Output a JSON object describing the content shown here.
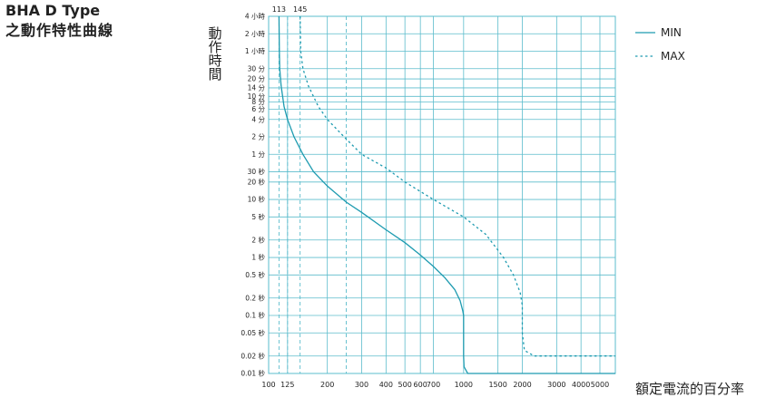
{
  "chart_data": {
    "type": "line",
    "title": "BHA D Type",
    "subtitle": "之動作特性曲線",
    "ylabel": "動作時間",
    "xlabel": "額定電流的百分率",
    "x_scale": "log",
    "y_scale": "log",
    "xlim": [
      100,
      6000
    ],
    "ylim_seconds": [
      0.01,
      14400
    ],
    "grid": true,
    "legend_position": "top-right",
    "x_ticks": [
      {
        "v": 100,
        "label": "100"
      },
      {
        "v": 125,
        "label": "125"
      },
      {
        "v": 200,
        "label": "200"
      },
      {
        "v": 300,
        "label": "300"
      },
      {
        "v": 400,
        "label": "400"
      },
      {
        "v": 500,
        "label": "500"
      },
      {
        "v": 600,
        "label": "600"
      },
      {
        "v": 700,
        "label": "700"
      },
      {
        "v": 1000,
        "label": "1000"
      },
      {
        "v": 1500,
        "label": "1500"
      },
      {
        "v": 2000,
        "label": "2000"
      },
      {
        "v": 3000,
        "label": "3000"
      },
      {
        "v": 4000,
        "label": "4000"
      },
      {
        "v": 5000,
        "label": "5000"
      }
    ],
    "y_ticks": [
      {
        "v": 14400,
        "label": "4 小時"
      },
      {
        "v": 7200,
        "label": "2 小時"
      },
      {
        "v": 3600,
        "label": "1 小時"
      },
      {
        "v": 1800,
        "label": "30 分"
      },
      {
        "v": 1200,
        "label": "20 分"
      },
      {
        "v": 840,
        "label": "14 分"
      },
      {
        "v": 600,
        "label": "10 分"
      },
      {
        "v": 480,
        "label": "8 分"
      },
      {
        "v": 360,
        "label": "6 分"
      },
      {
        "v": 240,
        "label": "4 分"
      },
      {
        "v": 120,
        "label": "2 分"
      },
      {
        "v": 60,
        "label": "1 分"
      },
      {
        "v": 30,
        "label": "30 秒"
      },
      {
        "v": 20,
        "label": "20 秒"
      },
      {
        "v": 10,
        "label": "10 秒"
      },
      {
        "v": 5,
        "label": "5 秒"
      },
      {
        "v": 2,
        "label": "2 秒"
      },
      {
        "v": 1,
        "label": "1 秒"
      },
      {
        "v": 0.5,
        "label": "0.5 秒"
      },
      {
        "v": 0.2,
        "label": "0.2 秒"
      },
      {
        "v": 0.1,
        "label": "0.1 秒"
      },
      {
        "v": 0.05,
        "label": "0.05 秒"
      },
      {
        "v": 0.02,
        "label": "0.02 秒"
      },
      {
        "v": 0.01,
        "label": "0.01 秒"
      }
    ],
    "top_annotations": [
      {
        "v": 113,
        "label": "113"
      },
      {
        "v": 145,
        "label": "145"
      }
    ],
    "reference_lines_x": [
      113,
      125,
      145,
      250
    ],
    "series": [
      {
        "name": "MIN",
        "style": "solid",
        "color": "#1e9bb0",
        "points": [
          [
            113,
            14400
          ],
          [
            113.5,
            3600
          ],
          [
            114,
            1800
          ],
          [
            116,
            900
          ],
          [
            120,
            400
          ],
          [
            125,
            240
          ],
          [
            135,
            120
          ],
          [
            150,
            60
          ],
          [
            170,
            30
          ],
          [
            200,
            17
          ],
          [
            250,
            9
          ],
          [
            300,
            6
          ],
          [
            400,
            3
          ],
          [
            500,
            1.8
          ],
          [
            600,
            1.1
          ],
          [
            700,
            0.7
          ],
          [
            800,
            0.45
          ],
          [
            900,
            0.28
          ],
          [
            960,
            0.18
          ],
          [
            990,
            0.12
          ],
          [
            1000,
            0.1
          ],
          [
            1000,
            0.05
          ],
          [
            1000,
            0.02
          ],
          [
            1005,
            0.013
          ],
          [
            1050,
            0.01
          ],
          [
            1500,
            0.01
          ],
          [
            6000,
            0.01
          ]
        ]
      },
      {
        "name": "MAX",
        "style": "dashed",
        "color": "#1e9bb0",
        "points": [
          [
            145,
            14400
          ],
          [
            146,
            3600
          ],
          [
            150,
            1800
          ],
          [
            160,
            900
          ],
          [
            180,
            400
          ],
          [
            200,
            240
          ],
          [
            250,
            110
          ],
          [
            300,
            60
          ],
          [
            400,
            35
          ],
          [
            500,
            20
          ],
          [
            700,
            10
          ],
          [
            1000,
            5
          ],
          [
            1300,
            2.5
          ],
          [
            1600,
            1
          ],
          [
            1800,
            0.5
          ],
          [
            1950,
            0.25
          ],
          [
            2000,
            0.15
          ],
          [
            2000,
            0.05
          ],
          [
            2050,
            0.025
          ],
          [
            2300,
            0.02
          ],
          [
            6000,
            0.02
          ]
        ]
      }
    ]
  }
}
